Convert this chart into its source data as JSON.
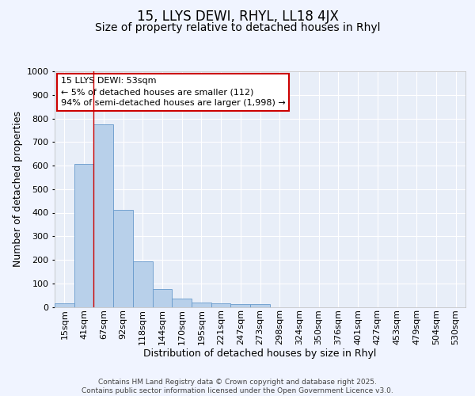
{
  "title": "15, LLYS DEWI, RHYL, LL18 4JX",
  "subtitle": "Size of property relative to detached houses in Rhyl",
  "xlabel": "Distribution of detached houses by size in Rhyl",
  "ylabel": "Number of detached properties",
  "bar_labels": [
    "15sqm",
    "41sqm",
    "67sqm",
    "92sqm",
    "118sqm",
    "144sqm",
    "170sqm",
    "195sqm",
    "221sqm",
    "247sqm",
    "273sqm",
    "298sqm",
    "324sqm",
    "350sqm",
    "376sqm",
    "401sqm",
    "427sqm",
    "453sqm",
    "479sqm",
    "504sqm",
    "530sqm"
  ],
  "bar_values": [
    15,
    607,
    775,
    412,
    192,
    77,
    35,
    20,
    15,
    12,
    12,
    0,
    0,
    0,
    0,
    0,
    0,
    0,
    0,
    0,
    0
  ],
  "bar_color": "#b8d0ea",
  "bar_edge_color": "#6699cc",
  "fig_background": "#f0f4ff",
  "ax_background": "#e8eef8",
  "grid_color": "#ffffff",
  "vline_x": 1.5,
  "vline_color": "#cc0000",
  "annotation_text": "15 LLYS DEWI: 53sqm\n← 5% of detached houses are smaller (112)\n94% of semi-detached houses are larger (1,998) →",
  "annotation_box_edge": "#cc0000",
  "ylim": [
    0,
    1000
  ],
  "yticks": [
    0,
    100,
    200,
    300,
    400,
    500,
    600,
    700,
    800,
    900,
    1000
  ],
  "footer_text": "Contains HM Land Registry data © Crown copyright and database right 2025.\nContains public sector information licensed under the Open Government Licence v3.0.",
  "title_fontsize": 12,
  "subtitle_fontsize": 10,
  "xlabel_fontsize": 9,
  "ylabel_fontsize": 9,
  "tick_fontsize": 8,
  "annotation_fontsize": 8,
  "footer_fontsize": 6.5
}
